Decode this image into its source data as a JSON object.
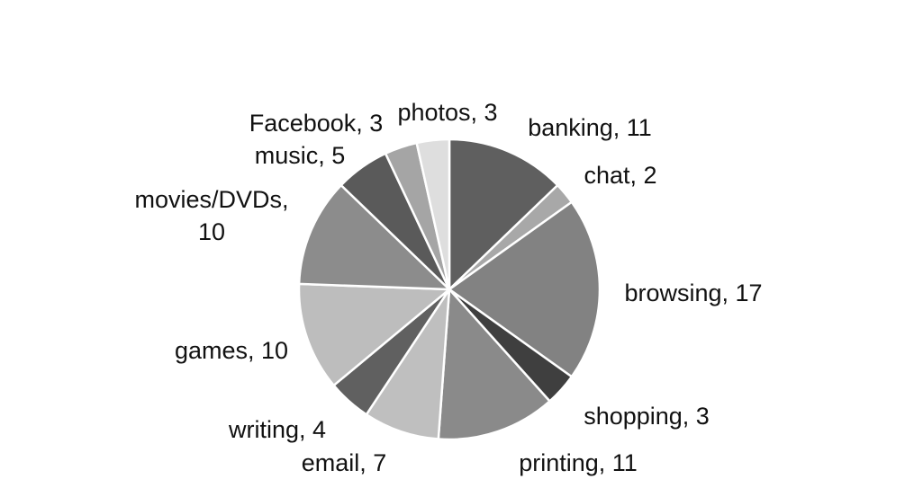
{
  "chart_data": {
    "type": "pie",
    "title": "",
    "categories": [
      "banking",
      "chat",
      "browsing",
      "shopping",
      "printing",
      "email",
      "writing",
      "games",
      "movies/DVDs",
      "music",
      "Facebook",
      "photos"
    ],
    "values": [
      11,
      2,
      17,
      3,
      11,
      7,
      4,
      10,
      10,
      5,
      3,
      3
    ],
    "labels": [
      "banking, 11",
      "chat, 2",
      "browsing, 17",
      "shopping, 3",
      "printing, 11",
      "email, 7",
      "writing, 4",
      "games, 10",
      [
        "movies/DVDs,",
        "10"
      ],
      "music, 5",
      "Facebook, 3",
      "photos, 3"
    ],
    "colors": [
      "#5f5f5f",
      "#a8a8a8",
      "#828282",
      "#3f3f3f",
      "#8a8a8a",
      "#bfbfbf",
      "#606060",
      "#bdbdbd",
      "#8c8c8c",
      "#5a5a5a",
      "#a5a5a5",
      "#dedede"
    ],
    "legend": "none",
    "start_angle_deg": 0,
    "direction": "clockwise"
  }
}
